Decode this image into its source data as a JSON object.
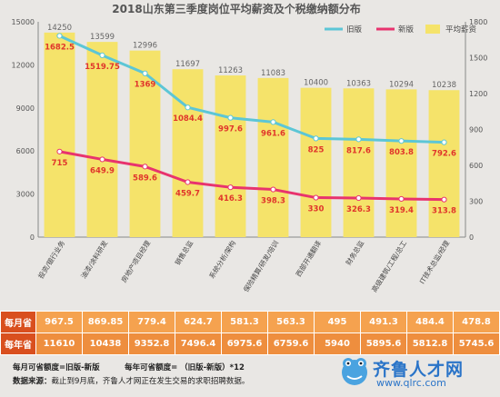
{
  "chart_data": {
    "type": "bar+line",
    "title": "2018山东第三季度岗位平均薪资及个税缴纳额分布",
    "categories": [
      "投资/银行业务",
      "油漆/涂料研发",
      "房地产项目经理",
      "销售总监",
      "系统分析/架构",
      "保险精算/研发/培训",
      "西部开通翻译",
      "财务总监",
      "高级建筑/工程/总工",
      "IT技术总监/经理"
    ],
    "legend": [
      "旧版",
      "新版",
      "平均薪资"
    ],
    "legend_position": "top-right",
    "series": [
      {
        "name": "平均薪资",
        "kind": "bar",
        "axis": "left",
        "color": "#f5e36a",
        "values": [
          14250,
          13599,
          12996,
          11697,
          11263,
          11083,
          10400,
          10363,
          10294,
          10238
        ]
      },
      {
        "name": "旧版",
        "kind": "line",
        "axis": "right",
        "color": "#5cc6d6",
        "values": [
          1682.5,
          1519.75,
          1369,
          1084.4,
          997.6,
          961.6,
          825,
          817.6,
          803.8,
          792.6
        ]
      },
      {
        "name": "新版",
        "kind": "line",
        "axis": "right",
        "color": "#e8336e",
        "values": [
          715,
          649.9,
          589.6,
          459.7,
          416.3,
          398.3,
          330,
          326.3,
          319.4,
          313.8
        ]
      }
    ],
    "left_axis": {
      "min": 0,
      "max": 15000,
      "ticks": [
        "0",
        "3000",
        "6000",
        "9000",
        "12000",
        "15000"
      ]
    },
    "right_axis": {
      "min": 0,
      "max": 1800,
      "ticks": [
        "0",
        "300",
        "600",
        "900",
        "1200",
        "1500",
        "1800"
      ]
    },
    "grid": false
  },
  "table": {
    "row_monthly_label": "每月省",
    "row_yearly_label": "每年省",
    "monthly": [
      "967.5",
      "869.85",
      "779.4",
      "624.7",
      "581.3",
      "563.3",
      "495",
      "491.3",
      "484.4",
      "478.8"
    ],
    "yearly": [
      "11610",
      "10438",
      "9352.8",
      "7496.4",
      "6975.6",
      "6759.6",
      "5940",
      "5895.6",
      "5812.8",
      "5745.6"
    ]
  },
  "footer": {
    "formula1": "每月可省额度=旧版-新版",
    "formula2": "每年可省额度= （旧版-新版）*12",
    "source_label": "数据来源：",
    "source_text": "截止到9月底，齐鲁人才网正在发生交易的求职招聘数据。"
  },
  "logo": {
    "name": "齐鲁人才网",
    "url": "www.qlrc.com"
  }
}
